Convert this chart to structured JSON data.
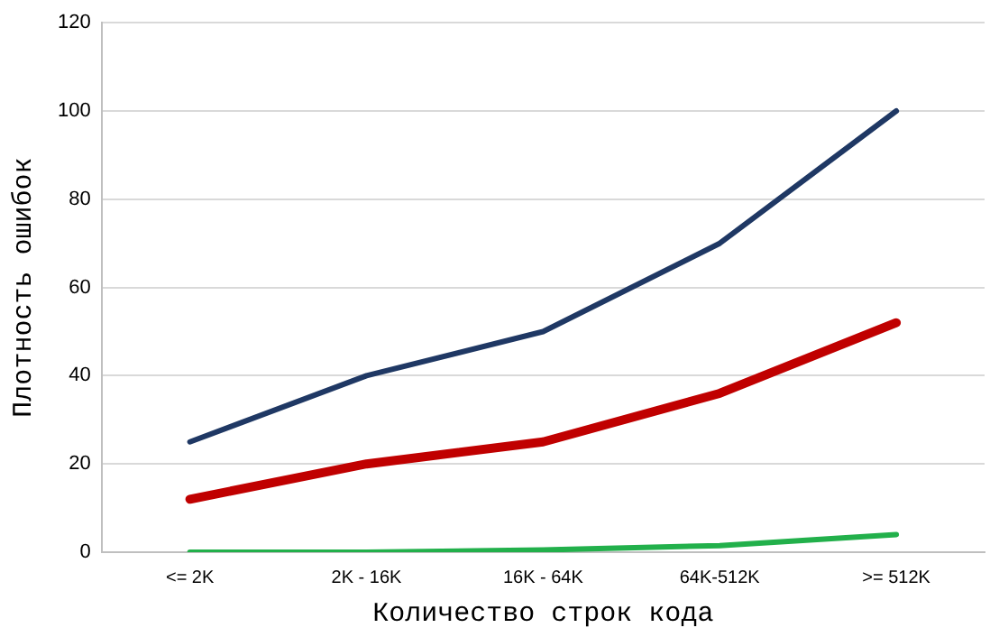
{
  "chart_data": {
    "type": "line",
    "xlabel": "Количество строк кода",
    "ylabel": "Плотность ошибок",
    "categories": [
      "<= 2K",
      "2K - 16K",
      "16K - 64K",
      "64K-512K",
      ">= 512K"
    ],
    "series": [
      {
        "color": "#1f3864",
        "values": [
          25,
          40,
          50,
          70,
          100
        ]
      },
      {
        "color": "#c00000",
        "values": [
          12,
          20,
          25,
          36,
          52
        ]
      },
      {
        "color": "#22b04b",
        "values": [
          0,
          0,
          0.5,
          1.5,
          4
        ]
      }
    ],
    "ylim": [
      0,
      120
    ],
    "yticks": [
      0,
      20,
      40,
      60,
      80,
      100,
      120
    ],
    "grid": "y",
    "legend": false,
    "marker": "none",
    "line_style": "solid"
  }
}
